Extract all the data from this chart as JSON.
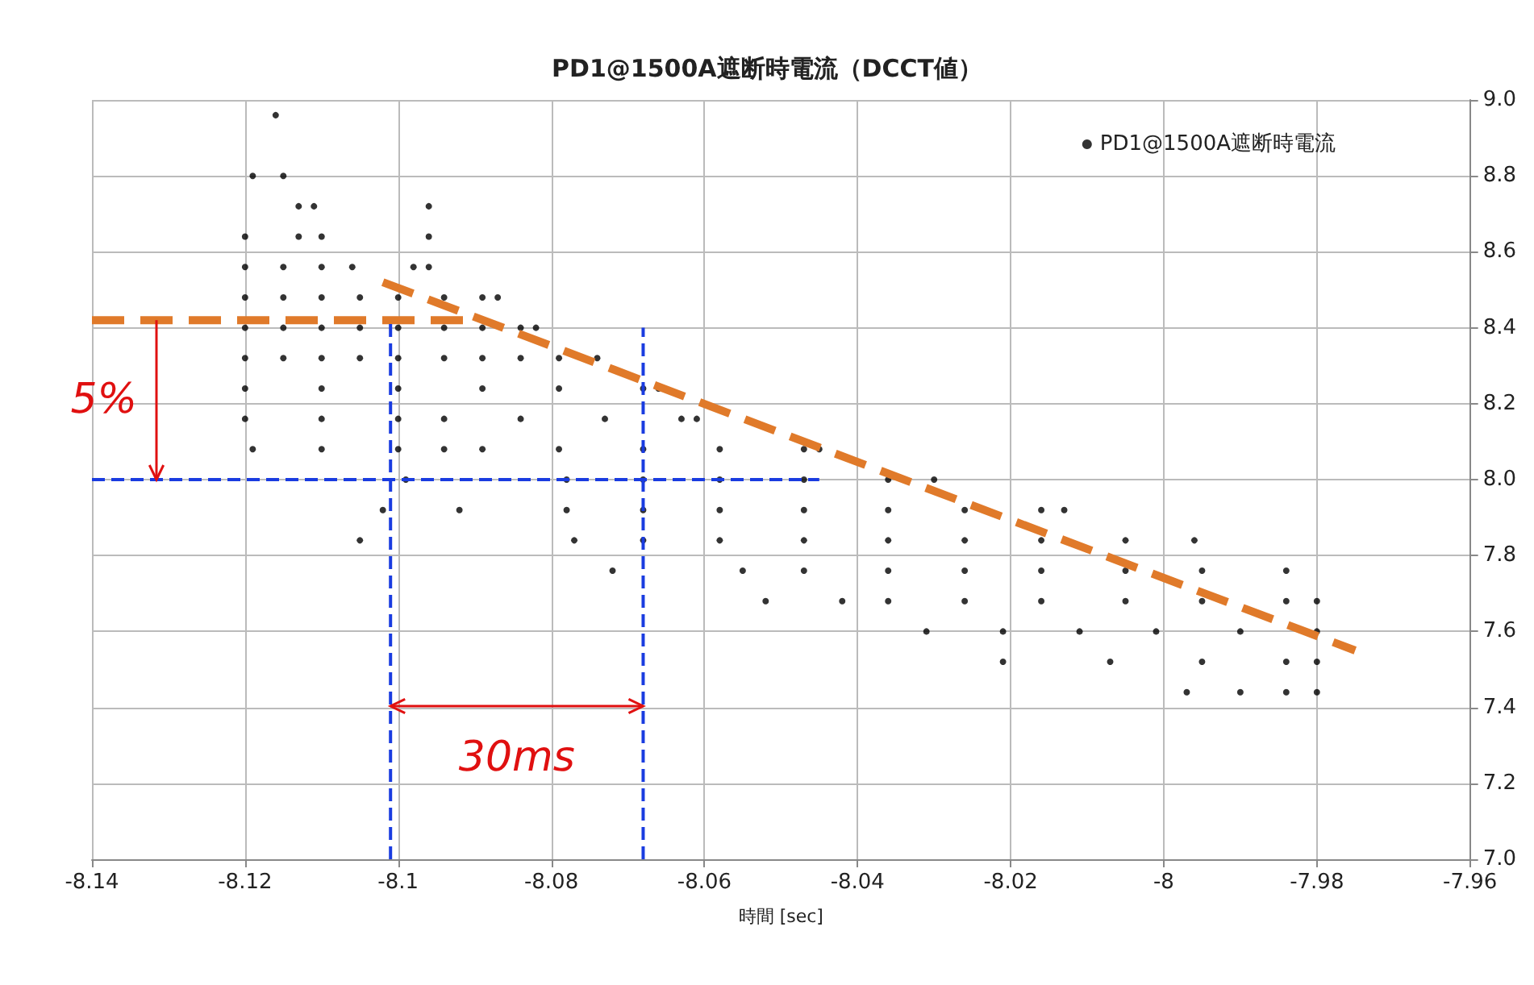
{
  "chart_data": {
    "type": "scatter",
    "title": "PD1@1500A遮断時電流（DCCT値）",
    "xlabel": "時間 [sec]",
    "xlim": [
      -8.14,
      -7.96
    ],
    "xticks": [
      -8.14,
      -8.12,
      -8.1,
      -8.08,
      -8.06,
      -8.04,
      -8.02,
      -8,
      -7.98,
      -7.96
    ],
    "ylim": [
      7,
      9
    ],
    "yticks": [
      {
        "value": 7,
        "label": "7.0"
      },
      7.2,
      7.4,
      7.6,
      7.8,
      {
        "value": 8,
        "label": "8.0"
      },
      8.2,
      8.4,
      8.6,
      8.8,
      {
        "value": 9,
        "label": "9.0"
      }
    ],
    "grid": true,
    "legend": "top right",
    "annotations": [
      "5%",
      "30ms"
    ],
    "series": [
      {
        "name": "PD1@1500A遮断時電流",
        "color": "#000000",
        "marker": "circle",
        "x": [
          -8.116,
          -8.119,
          -8.115,
          -8.113,
          -8.111,
          -8.096,
          -8.12,
          -8.113,
          -8.11,
          -8.096,
          -8.12,
          -8.115,
          -8.11,
          -8.106,
          -8.098,
          -8.096,
          -8.12,
          -8.115,
          -8.11,
          -8.105,
          -8.1,
          -8.094,
          -8.089,
          -8.087,
          -8.12,
          -8.115,
          -8.11,
          -8.105,
          -8.1,
          -8.094,
          -8.089,
          -8.084,
          -8.082,
          -8.12,
          -8.115,
          -8.11,
          -8.105,
          -8.1,
          -8.094,
          -8.089,
          -8.084,
          -8.079,
          -8.074,
          -8.12,
          -8.11,
          -8.1,
          -8.089,
          -8.079,
          -8.068,
          -8.066,
          -8.12,
          -8.11,
          -8.1,
          -8.094,
          -8.084,
          -8.073,
          -8.063,
          -8.061,
          -8.119,
          -8.11,
          -8.1,
          -8.094,
          -8.089,
          -8.079,
          -8.068,
          -8.058,
          -8.047,
          -8.045,
          -8.099,
          -8.078,
          -8.068,
          -8.058,
          -8.047,
          -8.036,
          -8.03,
          -8.102,
          -8.092,
          -8.078,
          -8.068,
          -8.058,
          -8.047,
          -8.036,
          -8.026,
          -8.016,
          -8.013,
          -8.105,
          -8.077,
          -8.068,
          -8.058,
          -8.047,
          -8.036,
          -8.026,
          -8.016,
          -8.005,
          -7.996,
          -8.072,
          -8.055,
          -8.047,
          -8.036,
          -8.026,
          -8.016,
          -8.005,
          -7.995,
          -7.984,
          -8.052,
          -8.042,
          -8.036,
          -8.026,
          -8.016,
          -8.005,
          -7.995,
          -7.984,
          -7.98,
          -8.031,
          -8.021,
          -8.011,
          -8.001,
          -7.99,
          -7.98,
          -8.021,
          -8.007,
          -7.995,
          -7.984,
          -7.98,
          -7.997,
          -7.99,
          -7.984,
          -7.98
        ],
        "values": [
          8.96,
          8.8,
          8.8,
          8.72,
          8.72,
          8.72,
          8.64,
          8.64,
          8.64,
          8.64,
          8.56,
          8.56,
          8.56,
          8.56,
          8.56,
          8.56,
          8.48,
          8.48,
          8.48,
          8.48,
          8.48,
          8.48,
          8.48,
          8.48,
          8.4,
          8.4,
          8.4,
          8.4,
          8.4,
          8.4,
          8.4,
          8.4,
          8.4,
          8.32,
          8.32,
          8.32,
          8.32,
          8.32,
          8.32,
          8.32,
          8.32,
          8.32,
          8.32,
          8.24,
          8.24,
          8.24,
          8.24,
          8.24,
          8.24,
          8.24,
          8.16,
          8.16,
          8.16,
          8.16,
          8.16,
          8.16,
          8.16,
          8.16,
          8.08,
          8.08,
          8.08,
          8.08,
          8.08,
          8.08,
          8.08,
          8.08,
          8.08,
          8.08,
          8,
          8,
          8,
          8,
          8,
          8,
          8,
          7.92,
          7.92,
          7.92,
          7.92,
          7.92,
          7.92,
          7.92,
          7.92,
          7.92,
          7.92,
          7.84,
          7.84,
          7.84,
          7.84,
          7.84,
          7.84,
          7.84,
          7.84,
          7.84,
          7.84,
          7.76,
          7.76,
          7.76,
          7.76,
          7.76,
          7.76,
          7.76,
          7.76,
          7.76,
          7.68,
          7.68,
          7.68,
          7.68,
          7.68,
          7.68,
          7.68,
          7.68,
          7.68,
          7.6,
          7.6,
          7.6,
          7.6,
          7.6,
          7.6,
          7.52,
          7.52,
          7.52,
          7.52,
          7.52,
          7.44,
          7.44,
          7.44,
          7.44
        ]
      },
      {
        "type": "line",
        "color": "#e07a2a",
        "line_style": "dashed",
        "marker": "none",
        "x": [
          -8.14,
          -8.09
        ],
        "values": [
          8.42,
          8.42
        ]
      },
      {
        "type": "line",
        "color": "#e07a2a",
        "line_style": "dashed",
        "marker": "none",
        "x": [
          -8.102,
          -7.975
        ],
        "values": [
          8.52,
          7.55
        ]
      },
      {
        "type": "line",
        "color": "#1a3ce0",
        "line_style": "dashed",
        "marker": "none",
        "x": [
          -8.101,
          -8.101
        ],
        "values": [
          7,
          8.42
        ]
      },
      {
        "type": "line",
        "color": "#1a3ce0",
        "line_style": "dashed",
        "marker": "none",
        "x": [
          -8.068,
          -8.068
        ],
        "values": [
          7,
          8.4
        ]
      },
      {
        "type": "line",
        "color": "#1a3ce0",
        "line_style": "dashed",
        "marker": "none",
        "x": [
          -8.14,
          -8.045
        ],
        "values": [
          8,
          8
        ]
      }
    ]
  }
}
